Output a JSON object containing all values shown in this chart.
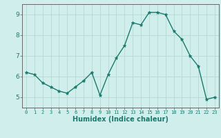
{
  "x": [
    0,
    1,
    2,
    3,
    4,
    5,
    6,
    7,
    8,
    9,
    10,
    11,
    12,
    13,
    14,
    15,
    16,
    17,
    18,
    19,
    20,
    21,
    22,
    23
  ],
  "y": [
    6.2,
    6.1,
    5.7,
    5.5,
    5.3,
    5.2,
    5.5,
    5.8,
    6.2,
    5.1,
    6.1,
    6.9,
    7.5,
    8.6,
    8.5,
    9.1,
    9.1,
    9.0,
    8.2,
    7.8,
    7.0,
    6.5,
    4.9,
    5.0
  ],
  "xlabel": "Humidex (Indice chaleur)",
  "ylim": [
    4.5,
    9.5
  ],
  "xlim": [
    -0.5,
    23.5
  ],
  "yticks": [
    5,
    6,
    7,
    8,
    9
  ],
  "xticks": [
    0,
    1,
    2,
    3,
    4,
    5,
    6,
    7,
    8,
    9,
    10,
    11,
    12,
    13,
    14,
    15,
    16,
    17,
    18,
    19,
    20,
    21,
    22,
    23
  ],
  "line_color": "#1a7a6e",
  "marker_color": "#1a7a6e",
  "bg_color": "#d0eeeb",
  "grid_color": "#b8d8d4",
  "axis_color": "#666666",
  "tick_label_color": "#1a7a6e",
  "xlabel_color": "#1a7a6e",
  "marker": "*",
  "linewidth": 1.0,
  "markersize": 3.5,
  "xtick_fontsize": 5.0,
  "ytick_fontsize": 6.5,
  "xlabel_fontsize": 7.0
}
